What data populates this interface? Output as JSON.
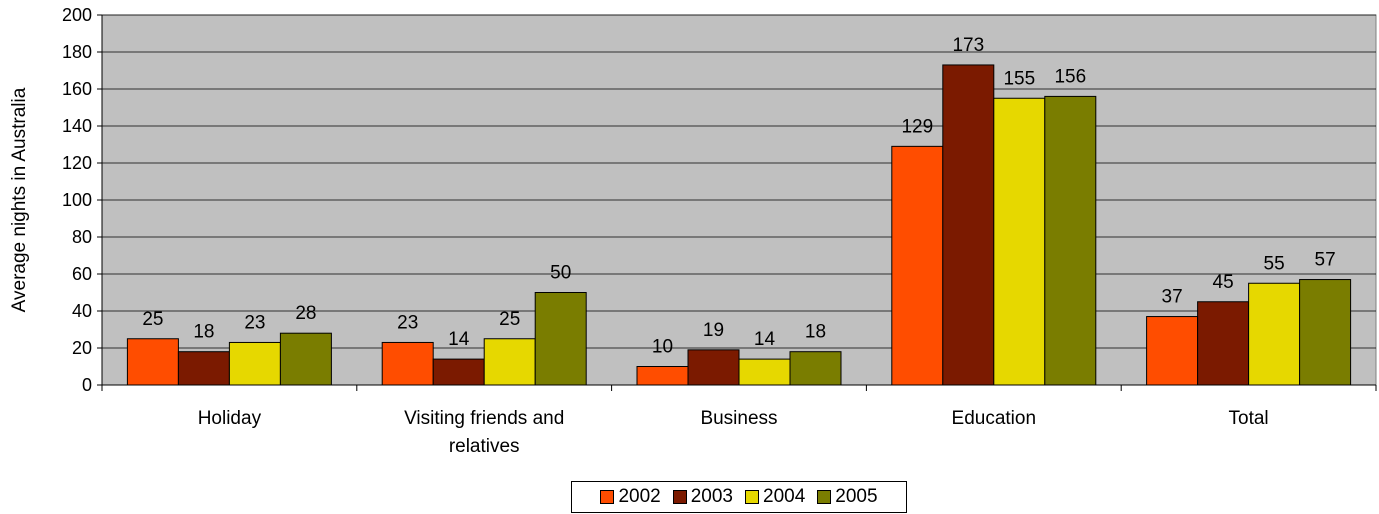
{
  "chart_data": {
    "type": "bar",
    "title": "",
    "xlabel": "",
    "ylabel": "Average nights in Australia",
    "ylim": [
      0,
      200
    ],
    "yticks": [
      0,
      20,
      40,
      60,
      80,
      100,
      120,
      140,
      160,
      180,
      200
    ],
    "grid": true,
    "legend_position": "bottom",
    "categories": [
      "Holiday",
      "Visiting friends and relatives",
      "Business",
      "Education",
      "Total"
    ],
    "category_lines": [
      [
        "Holiday"
      ],
      [
        "Visiting friends and",
        "relatives"
      ],
      [
        "Business"
      ],
      [
        "Education"
      ],
      [
        "Total"
      ]
    ],
    "series": [
      {
        "name": "2002",
        "color": "#FF4D00",
        "values": [
          25,
          23,
          10,
          129,
          37
        ]
      },
      {
        "name": "2003",
        "color": "#7B1A00",
        "values": [
          18,
          14,
          19,
          173,
          45
        ]
      },
      {
        "name": "2004",
        "color": "#E6D800",
        "values": [
          23,
          25,
          14,
          155,
          55
        ]
      },
      {
        "name": "2005",
        "color": "#7A7D00",
        "values": [
          28,
          50,
          18,
          156,
          57
        ]
      }
    ],
    "plot_background": "#C0C0C0"
  }
}
